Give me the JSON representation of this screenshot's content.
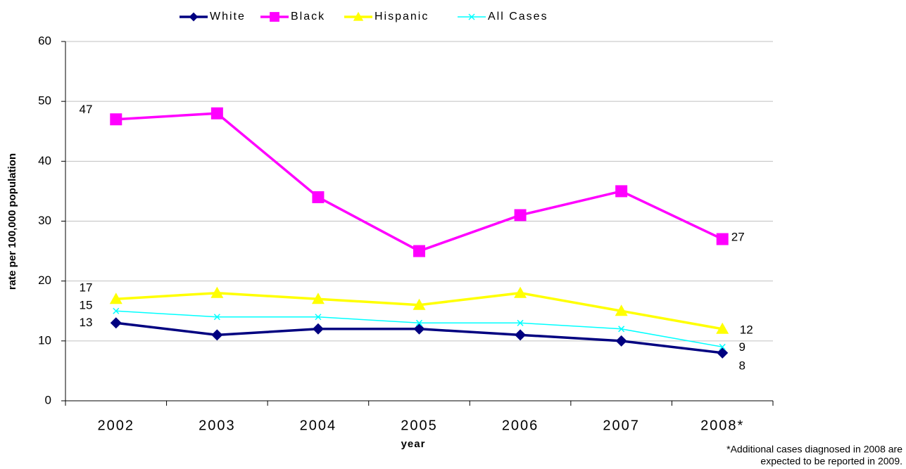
{
  "chart_data": {
    "type": "line",
    "y_axis_label": "rate per 100,000 population",
    "x_axis_label": "year",
    "categories": [
      "2002",
      "2003",
      "2004",
      "2005",
      "2006",
      "2007",
      "2008*"
    ],
    "series": [
      {
        "name": "White",
        "color": "#000080",
        "marker": "diamond",
        "values": [
          13,
          11,
          12,
          12,
          11,
          10,
          8
        ]
      },
      {
        "name": "Black",
        "color": "#ff00ff",
        "marker": "square",
        "values": [
          47,
          48,
          34,
          25,
          31,
          35,
          27
        ]
      },
      {
        "name": "Hispanic",
        "color": "#ffff00",
        "marker": "triangle",
        "values": [
          17,
          18,
          17,
          16,
          18,
          15,
          12
        ]
      },
      {
        "name": "All Cases",
        "color": "#00ffff",
        "marker": "x",
        "values": [
          15,
          14,
          14,
          13,
          13,
          12,
          9
        ]
      }
    ],
    "ylim": [
      0,
      60
    ],
    "yticks": [
      0,
      10,
      20,
      30,
      40,
      50,
      60
    ],
    "grid": true,
    "legend": "top",
    "footnote": [
      "*Additional cases diagnosed in 2008 are",
      "expected to be reported in 2009."
    ]
  }
}
